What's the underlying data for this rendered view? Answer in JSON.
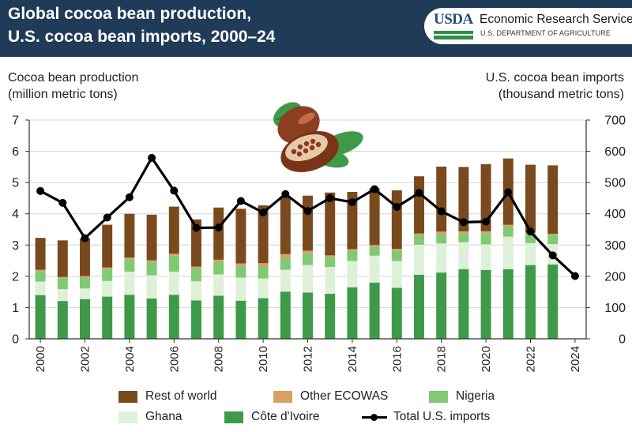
{
  "header": {
    "title_line1": "Global cocoa bean production,",
    "title_line2": "U.S. cocoa bean imports, 2000–24",
    "logo_text": "USDA",
    "org_name": "Economic Research Service",
    "dept_name": "U.S. DEPARTMENT OF AGRICULTURE"
  },
  "colors": {
    "header_bg": "#1f3b57",
    "rest_of_world": "#7a4a1f",
    "other_ecowas": "#d9a066",
    "nigeria": "#7fca72",
    "ghana": "#dff0d8",
    "cote_divoire": "#3e9a48",
    "total_us_imports": "#000000"
  },
  "legend_icon": "cocoa-pod-icon",
  "chart_data": {
    "type": "bar",
    "title": "Global cocoa bean production, U.S. cocoa bean imports, 2000–24",
    "ylabel_left": [
      "Cocoa bean production",
      "(million metric tons)"
    ],
    "ylabel_right": [
      "U.S. cocoa bean imports",
      "(thousand metric tons)"
    ],
    "ylim_left": [
      0,
      7
    ],
    "ylim_right": [
      0,
      700
    ],
    "yticks_left": [
      "0",
      "1",
      "2",
      "3",
      "4",
      "5",
      "6",
      "7"
    ],
    "yticks_right": [
      "0",
      "100",
      "200",
      "300",
      "400",
      "500",
      "600",
      "700"
    ],
    "grid": true,
    "legend_position": "bottom",
    "categories": [
      2000,
      2001,
      2002,
      2003,
      2004,
      2005,
      2006,
      2007,
      2008,
      2009,
      2010,
      2011,
      2012,
      2013,
      2014,
      2015,
      2016,
      2017,
      2018,
      2019,
      2020,
      2021,
      2022,
      2023,
      2024
    ],
    "x_tick_labels": [
      "2000",
      "2002",
      "2004",
      "2006",
      "2008",
      "2010",
      "2012",
      "2014",
      "2016",
      "2018",
      "2020",
      "2022",
      "2024"
    ],
    "stacked_series": [
      {
        "name": "Côte d'Ivoire",
        "values": [
          1.4,
          1.21,
          1.27,
          1.35,
          1.41,
          1.29,
          1.41,
          1.23,
          1.38,
          1.22,
          1.3,
          1.51,
          1.48,
          1.44,
          1.65,
          1.8,
          1.63,
          2.05,
          2.12,
          2.23,
          2.2,
          2.23,
          2.36,
          2.38,
          null
        ]
      },
      {
        "name": "Ghana",
        "values": [
          0.43,
          0.38,
          0.34,
          0.5,
          0.74,
          0.74,
          0.74,
          0.61,
          0.68,
          0.74,
          0.63,
          0.7,
          0.88,
          0.86,
          0.84,
          0.86,
          0.86,
          0.96,
          0.93,
          0.86,
          0.82,
          1.04,
          0.7,
          0.65,
          null
        ]
      },
      {
        "name": "Nigeria",
        "values": [
          0.34,
          0.35,
          0.36,
          0.38,
          0.4,
          0.42,
          0.51,
          0.41,
          0.39,
          0.37,
          0.38,
          0.37,
          0.38,
          0.32,
          0.33,
          0.3,
          0.33,
          0.3,
          0.3,
          0.29,
          0.36,
          0.32,
          0.3,
          0.3,
          null
        ]
      },
      {
        "name": "Other ECOWAS",
        "values": [
          0.04,
          0.04,
          0.04,
          0.05,
          0.05,
          0.06,
          0.06,
          0.06,
          0.08,
          0.08,
          0.11,
          0.13,
          0.08,
          0.05,
          0.05,
          0.04,
          0.06,
          0.06,
          0.08,
          0.06,
          0.06,
          0.06,
          0.04,
          0.03,
          null
        ]
      },
      {
        "name": "Rest of world",
        "values": [
          1.02,
          1.17,
          1.2,
          1.37,
          1.4,
          1.46,
          1.51,
          1.51,
          1.67,
          1.75,
          1.85,
          1.85,
          1.76,
          2.01,
          1.83,
          1.82,
          1.87,
          1.83,
          2.08,
          2.06,
          2.15,
          2.12,
          2.17,
          2.19,
          null
        ]
      }
    ],
    "line_series": {
      "name": "Total U.S. imports",
      "axis": "right",
      "values": [
        473,
        435,
        322,
        388,
        453,
        579,
        474,
        355,
        356,
        441,
        404,
        463,
        409,
        450,
        437,
        479,
        422,
        467,
        408,
        373,
        375,
        469,
        343,
        267,
        201
      ]
    }
  }
}
